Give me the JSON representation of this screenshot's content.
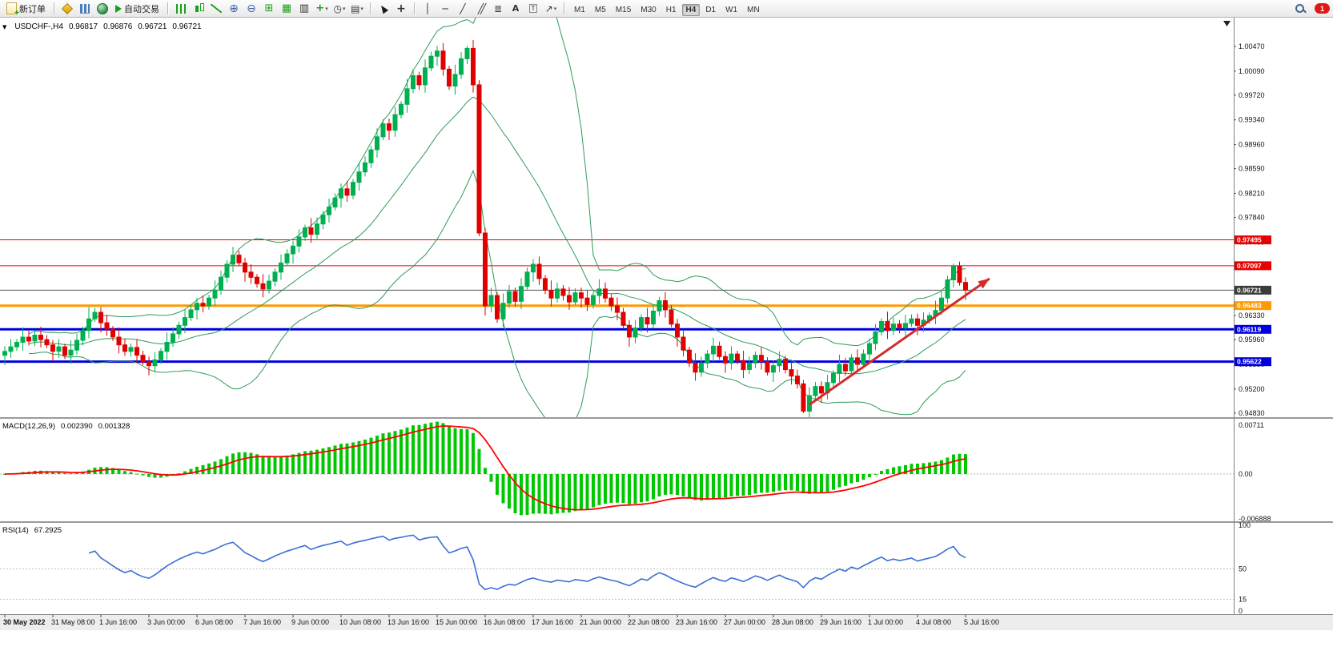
{
  "toolbar": {
    "new_order": "新订单",
    "auto_trading": "自动交易",
    "timeframes": [
      "M1",
      "M5",
      "M15",
      "M30",
      "H1",
      "H4",
      "D1",
      "W1",
      "MN"
    ],
    "active_timeframe": "H4",
    "badge": "1"
  },
  "chart": {
    "symbol_label": "USDCHF-,H4",
    "open": "0.96817",
    "high": "0.96876",
    "low": "0.96721",
    "close": "0.96721"
  },
  "macd": {
    "label": "MACD(12,26,9)",
    "value1": "0.002390",
    "value2": "0.001328",
    "axis_labels": [
      "0.00711",
      "0.00",
      "-0.006888"
    ]
  },
  "rsi": {
    "label": "RSI(14)",
    "value": "67.2925",
    "axis_labels": [
      "100",
      "50",
      "15",
      "0"
    ]
  },
  "price_axis_labels": [
    "1.00470",
    "1.00090",
    "0.99720",
    "0.99340",
    "0.98960",
    "0.98590",
    "0.98210",
    "0.97840",
    "0.97460",
    "0.97090",
    "0.96710",
    "0.96330",
    "0.95960",
    "0.95580",
    "0.95200",
    "0.94830"
  ],
  "time_axis_labels": [
    "30 May 2022",
    "31 May 08:00",
    "1 Jun 16:00",
    "3 Jun 00:00",
    "6 Jun 08:00",
    "7 Jun 16:00",
    "9 Jun 00:00",
    "10 Jun 08:00",
    "13 Jun 16:00",
    "15 Jun 00:00",
    "16 Jun 08:00",
    "17 Jun 16:00",
    "21 Jun 00:00",
    "22 Jun 08:00",
    "23 Jun 16:00",
    "27 Jun 00:00",
    "28 Jun 08:00",
    "29 Jun 16:00",
    "1 Jul 00:00",
    "4 Jul 08:00",
    "5 Jul 16:00"
  ],
  "hlines": [
    {
      "label": "0.97495",
      "price": 0.97495,
      "color": "#e60000",
      "thickness": 1,
      "name": "resistance-line-upper"
    },
    {
      "label": "0.97097",
      "price": 0.97097,
      "color": "#e60000",
      "thickness": 1,
      "name": "resistance-line-lower"
    },
    {
      "label": "0.96721",
      "price": 0.96721,
      "color": "#505050",
      "thickness": 1,
      "name": "current-price-line",
      "tag_color": "#3c3c3c"
    },
    {
      "label": "0.96483",
      "price": 0.96483,
      "color": "#ff9900",
      "thickness": 3,
      "name": "pivot-line-orange"
    },
    {
      "label": "0.96119",
      "price": 0.96119,
      "color": "#0000dd",
      "thickness": 3,
      "name": "support-line-upper"
    },
    {
      "label": "0.95622",
      "price": 0.95622,
      "color": "#0000dd",
      "thickness": 3,
      "name": "support-line-lower"
    }
  ],
  "trend_arrow": {
    "bar_start": 134,
    "price_start": 0.9496,
    "bar_end": 164,
    "price_end": 0.969,
    "color": "#d42a2a",
    "width": 3
  },
  "chart_data": {
    "type": "candlestick",
    "symbol": "USDCHF",
    "timeframe": "H4",
    "title": "USDCHF-,H4",
    "ylim": [
      0.94768,
      1.00913
    ],
    "point": 0.0001,
    "first_open": 0.9572,
    "wick_points": [
      8,
      12,
      5,
      15,
      10,
      6,
      13,
      7
    ],
    "overrides": {
      "14": {
        "high": 0.9646
      },
      "77": {
        "high": 1.0048
      },
      "133": {
        "low": 0.9483
      },
      "158": {
        "high": 0.9713
      }
    },
    "closes": [
      0.9578,
      0.9585,
      0.9592,
      0.96,
      0.9594,
      0.9603,
      0.9596,
      0.9588,
      0.9578,
      0.9585,
      0.9572,
      0.958,
      0.9595,
      0.961,
      0.9628,
      0.9638,
      0.9622,
      0.9612,
      0.96,
      0.9588,
      0.9578,
      0.9584,
      0.9572,
      0.9562,
      0.9556,
      0.9565,
      0.9578,
      0.9592,
      0.9605,
      0.9618,
      0.963,
      0.9642,
      0.9652,
      0.9648,
      0.966,
      0.9672,
      0.9692,
      0.9712,
      0.9726,
      0.9714,
      0.97,
      0.9692,
      0.9682,
      0.9674,
      0.9686,
      0.97,
      0.9714,
      0.9728,
      0.974,
      0.9754,
      0.9768,
      0.9758,
      0.9774,
      0.9788,
      0.98,
      0.9814,
      0.9828,
      0.9818,
      0.9838,
      0.9854,
      0.9868,
      0.9888,
      0.9908,
      0.9928,
      0.9918,
      0.9942,
      0.9958,
      0.9982,
      1.0002,
      0.9988,
      1.0014,
      1.0032,
      1.004,
      1.0012,
      0.9986,
      1.0004,
      1.0028,
      1.0044,
      0.9988,
      0.976,
      0.9648,
      0.9664,
      0.9628,
      0.9652,
      0.967,
      0.9655,
      0.9678,
      0.97,
      0.9712,
      0.969,
      0.9672,
      0.966,
      0.9674,
      0.9664,
      0.9654,
      0.9668,
      0.966,
      0.965,
      0.9664,
      0.9674,
      0.966,
      0.9648,
      0.9638,
      0.9618,
      0.96,
      0.9614,
      0.963,
      0.962,
      0.964,
      0.9656,
      0.9642,
      0.962,
      0.96,
      0.958,
      0.956,
      0.9546,
      0.956,
      0.9574,
      0.9586,
      0.957,
      0.956,
      0.9574,
      0.9564,
      0.955,
      0.956,
      0.9572,
      0.9562,
      0.9546,
      0.9556,
      0.9566,
      0.955,
      0.954,
      0.9528,
      0.9486,
      0.951,
      0.9524,
      0.9514,
      0.953,
      0.9544,
      0.9558,
      0.9548,
      0.9568,
      0.9558,
      0.9574,
      0.959,
      0.9608,
      0.9624,
      0.961,
      0.962,
      0.9614,
      0.9621,
      0.9628,
      0.9618,
      0.9626,
      0.9633,
      0.9641,
      0.966,
      0.9688,
      0.9709,
      0.9684,
      0.96721
    ],
    "bollinger": {
      "period": 20,
      "deviation": 2
    },
    "macd_params": {
      "fast": 12,
      "slow": 26,
      "signal": 9
    },
    "rsi_params": {
      "period": 14
    },
    "colors": {
      "up": "#00b050",
      "down": "#e00000",
      "bollinger": "#2e9b57",
      "macd_hist": "#00c800",
      "macd_signal": "#ff0000",
      "rsi": "#3b6fd4"
    }
  }
}
